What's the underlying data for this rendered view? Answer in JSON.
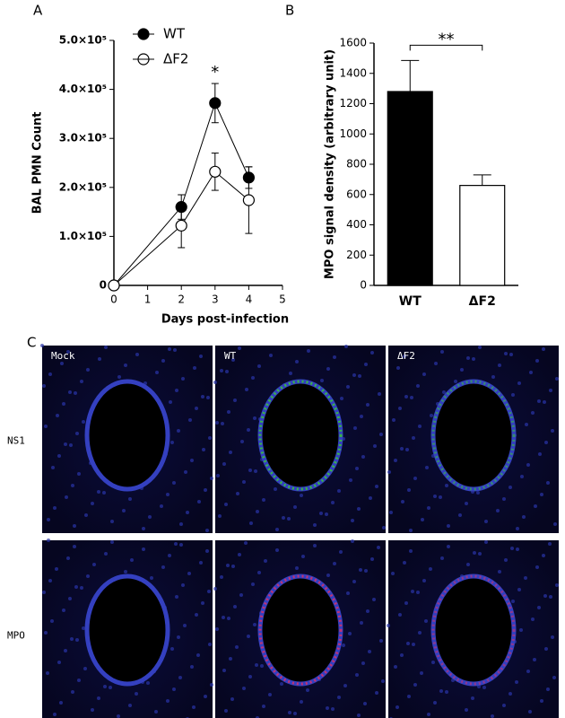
{
  "chart_data": [
    {
      "type": "line",
      "x_label": "Days post-infection",
      "y_label": "BAL PMN Count",
      "x": [
        0,
        2,
        3,
        4
      ],
      "series": [
        {
          "name": "WT",
          "color": "#000000",
          "values": [
            0,
            160000,
            372000,
            220000
          ],
          "errors": [
            0,
            25000,
            40000,
            22000
          ]
        },
        {
          "name": "ΔF2",
          "color": "#ffffff",
          "values": [
            0,
            122000,
            232000,
            174000
          ],
          "errors": [
            0,
            45000,
            38000,
            68000
          ]
        }
      ],
      "xlim": [
        0,
        5
      ],
      "xticks": [
        0,
        1,
        2,
        3,
        4,
        5
      ],
      "ylim": [
        0,
        500000
      ],
      "yticks": [
        0,
        {
          "value": 100000,
          "label": "1.0×10⁵"
        },
        {
          "value": 200000,
          "label": "2.0×10⁵"
        },
        {
          "value": 300000,
          "label": "3.0×10⁵"
        },
        {
          "value": 400000,
          "label": "4.0×10⁵"
        },
        {
          "value": 500000,
          "label": "5.0×10⁵"
        }
      ],
      "legend": "upper left",
      "annotation": {
        "text": "*",
        "x": 3
      }
    },
    {
      "type": "bar",
      "y_label": "MPO signal density (arbitrary unit)",
      "categories": [
        "WT",
        "ΔF2"
      ],
      "values": [
        1280,
        660
      ],
      "errors": [
        205,
        70
      ],
      "colors": [
        "#000000",
        "#ffffff"
      ],
      "ylim": [
        0,
        1600
      ],
      "yticks": [
        0,
        200,
        400,
        600,
        800,
        1000,
        1200,
        1400,
        1600
      ],
      "annotation": {
        "text": "**"
      }
    }
  ],
  "panel_labels": [
    "A",
    "B",
    "C"
  ],
  "micrographs": {
    "columns": [
      "Mock",
      "WT",
      "ΔF2"
    ],
    "rows": [
      "NS1",
      "MPO"
    ]
  }
}
